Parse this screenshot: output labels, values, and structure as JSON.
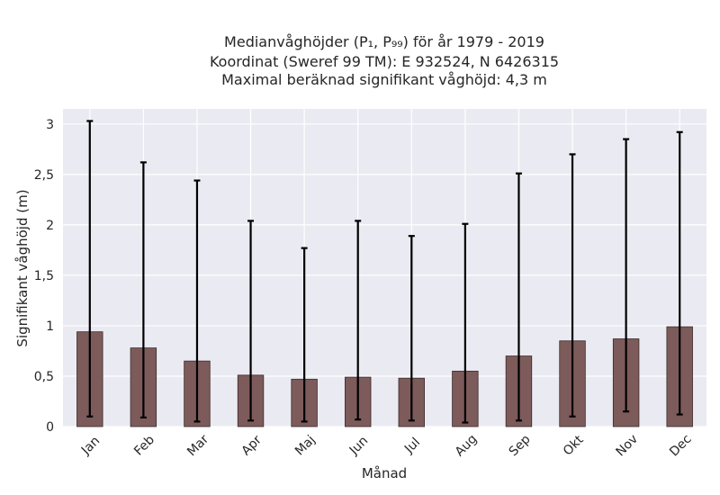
{
  "chart_data": {
    "type": "bar",
    "title_lines": [
      "Medianvåghöjder (P₁, P₉₉) för år 1979 - 2019",
      "Koordinat (Sweref 99 TM): E 932524, N 6426315",
      "Maximal beräknad signifikant våghöjd: 4,3 m"
    ],
    "xlabel": "Månad",
    "ylabel": "Signifikant våghöjd (m)",
    "categories": [
      "Jan",
      "Feb",
      "Mar",
      "Apr",
      "Maj",
      "Jun",
      "Jul",
      "Aug",
      "Sep",
      "Okt",
      "Nov",
      "Dec"
    ],
    "values": [
      0.94,
      0.78,
      0.65,
      0.51,
      0.47,
      0.49,
      0.48,
      0.55,
      0.7,
      0.85,
      0.87,
      0.99
    ],
    "p1": [
      0.1,
      0.09,
      0.05,
      0.06,
      0.05,
      0.07,
      0.06,
      0.04,
      0.06,
      0.1,
      0.15,
      0.12
    ],
    "p99": [
      3.03,
      2.62,
      2.44,
      2.04,
      1.77,
      2.04,
      1.89,
      2.01,
      2.51,
      2.7,
      2.85,
      2.92
    ],
    "ylim": [
      0,
      3.15
    ],
    "yticks": [
      0,
      0.5,
      1,
      1.5,
      2,
      2.5,
      3
    ],
    "ytick_labels": [
      "0",
      "0,5",
      "1",
      "1,5",
      "2",
      "2,5",
      "3"
    ],
    "grid": true,
    "colors": {
      "bar": "#7d5b5b",
      "bar_edge": "#3b2a2a",
      "error_bar": "#000000",
      "plot_bg": "#eaeaf2",
      "grid": "#ffffff"
    }
  }
}
